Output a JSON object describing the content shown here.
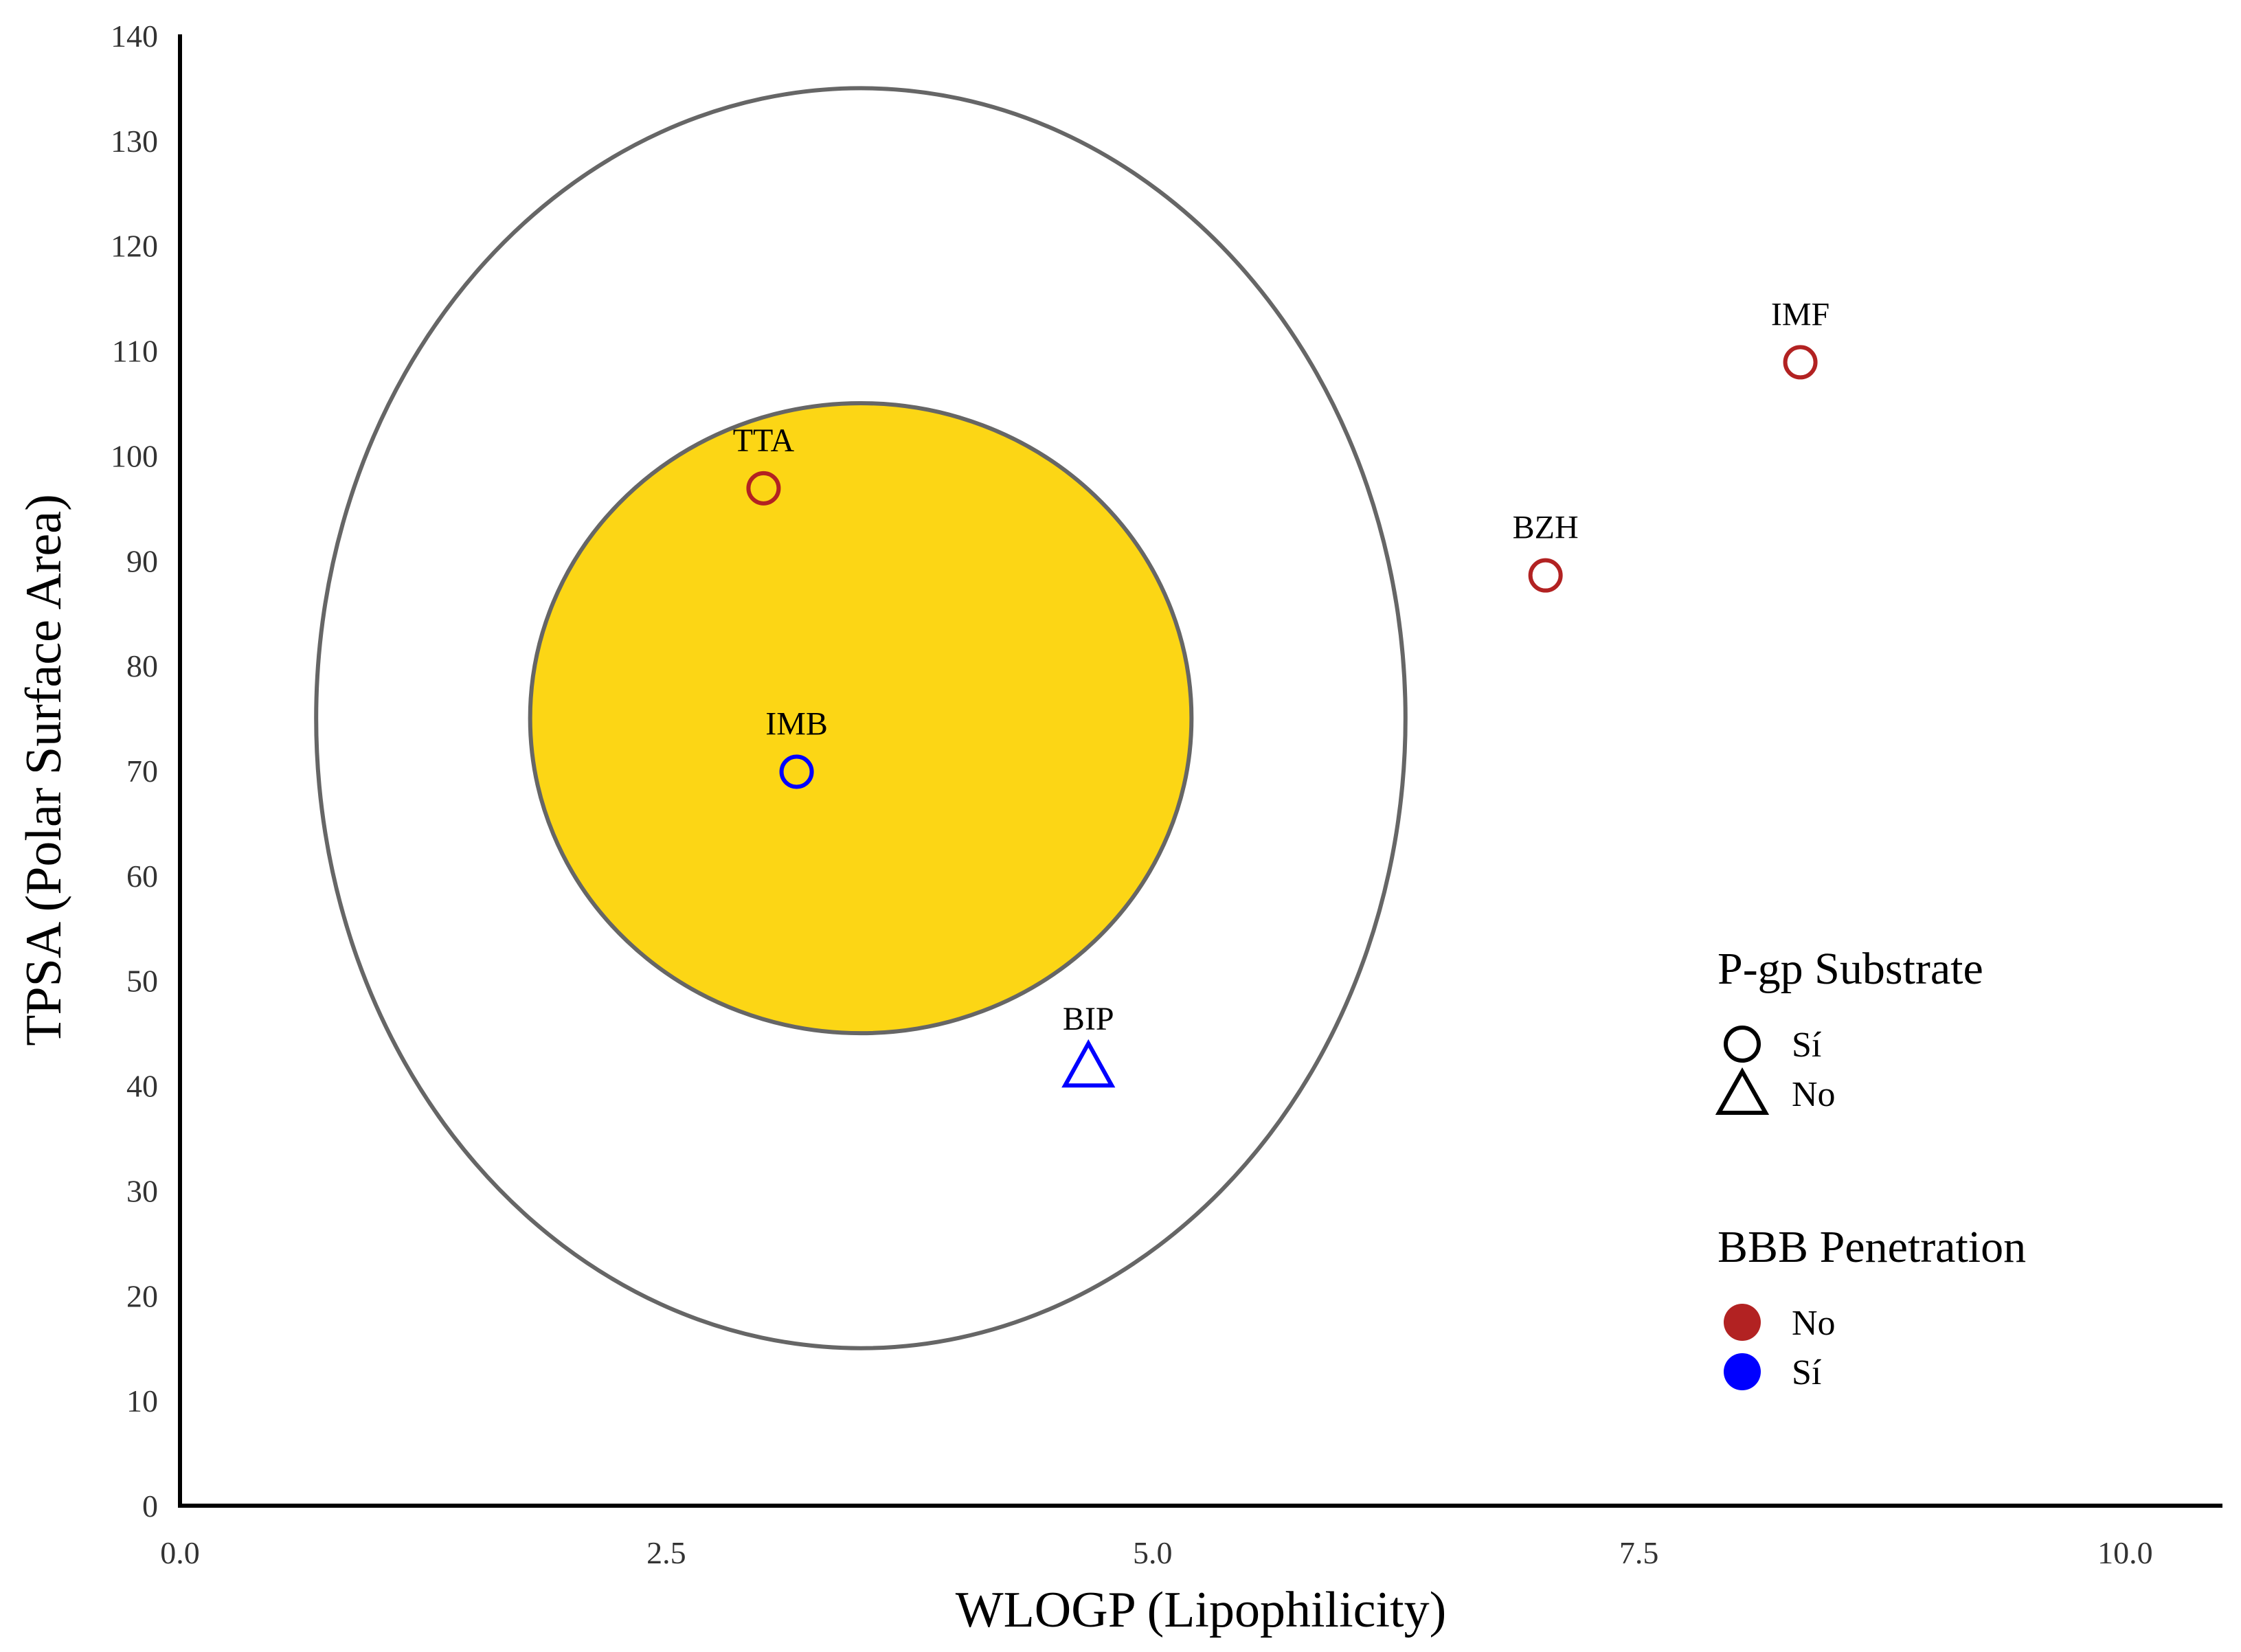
{
  "chart_data": {
    "type": "scatter",
    "xlabel": "WLOGP (Lipophilicity)",
    "ylabel": "TPSA (Polar Surface Area)",
    "xlim": [
      0,
      10.5
    ],
    "ylim": [
      0,
      140
    ],
    "x_ticks": [
      {
        "value": 0,
        "label": "0.0"
      },
      {
        "value": 2.5,
        "label": "2.5"
      },
      {
        "value": 5,
        "label": "5.0"
      },
      {
        "value": 7.5,
        "label": "7.5"
      },
      {
        "value": 10,
        "label": "10.0"
      }
    ],
    "y_ticks": [
      {
        "value": 0,
        "label": "0"
      },
      {
        "value": 10,
        "label": "10"
      },
      {
        "value": 20,
        "label": "20"
      },
      {
        "value": 30,
        "label": "30"
      },
      {
        "value": 40,
        "label": "40"
      },
      {
        "value": 50,
        "label": "50"
      },
      {
        "value": 60,
        "label": "60"
      },
      {
        "value": 70,
        "label": "70"
      },
      {
        "value": 80,
        "label": "80"
      },
      {
        "value": 90,
        "label": "90"
      },
      {
        "value": 100,
        "label": "100"
      },
      {
        "value": 110,
        "label": "110"
      },
      {
        "value": 120,
        "label": "120"
      },
      {
        "value": 130,
        "label": "130"
      },
      {
        "value": 140,
        "label": "140"
      }
    ],
    "grid": false,
    "regions": [
      {
        "name": "outer",
        "center": [
          3.5,
          75
        ],
        "radius_x": 2.8,
        "radius_y": 60,
        "fill": "#ffffff",
        "stroke": "#666666"
      },
      {
        "name": "inner",
        "center": [
          3.5,
          75
        ],
        "radius_x": 1.7,
        "radius_y": 30,
        "fill": "#fcd615",
        "stroke": "#666666"
      }
    ],
    "points": [
      {
        "label": "TTA",
        "x": 3.0,
        "y": 96.9,
        "pgp": "Sí",
        "bbb": "No"
      },
      {
        "label": "IMB",
        "x": 3.17,
        "y": 69.9,
        "pgp": "Sí",
        "bbb": "Sí"
      },
      {
        "label": "BIP",
        "x": 4.67,
        "y": 41.8,
        "pgp": "No",
        "bbb": "Sí"
      },
      {
        "label": "BZH",
        "x": 7.02,
        "y": 88.6,
        "pgp": "Sí",
        "bbb": "No"
      },
      {
        "label": "IMF",
        "x": 8.33,
        "y": 108.9,
        "pgp": "Sí",
        "bbb": "No"
      }
    ],
    "legend": {
      "placement": "right",
      "groups": [
        {
          "title": "P-gp Substrate",
          "items": [
            {
              "label": "Sí",
              "marker": "circle"
            },
            {
              "label": "No",
              "marker": "triangle"
            }
          ]
        },
        {
          "title": "BBB Penetration",
          "items": [
            {
              "label": "No",
              "color": "#b22222"
            },
            {
              "label": "Sí",
              "color": "#0000ff"
            }
          ]
        }
      ]
    },
    "colors": {
      "bbb_no": "#b22222",
      "bbb_si": "#0000ff",
      "region_stroke": "#666666",
      "yolk_fill": "#fcd615",
      "axis": "#000000"
    }
  }
}
